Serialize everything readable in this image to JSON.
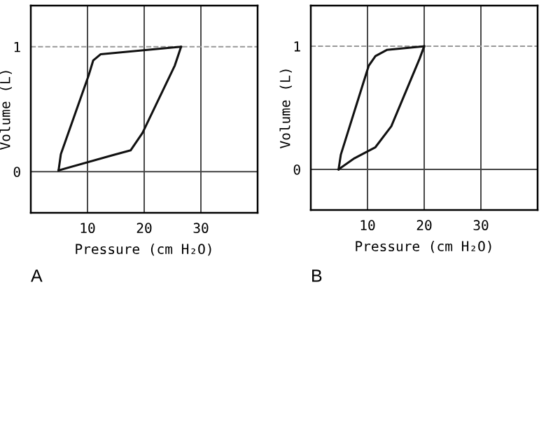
{
  "chart_data": [
    {
      "type": "line",
      "xlabel": "Pressure (cm H₂O)",
      "ylabel": "Volume (L)",
      "annotations": [
        "A"
      ],
      "xlim": [
        0,
        40
      ],
      "ylim": [
        -0.33,
        1.33
      ],
      "xticks": [
        10,
        20,
        30
      ],
      "yticks": [
        0,
        1
      ],
      "grid": "x",
      "marker": "none",
      "line_style": "solid",
      "ref_lines": [
        {
          "axis": "y",
          "value": 0,
          "line_style": "solid"
        },
        {
          "axis": "y",
          "value": 1,
          "line_style": "dashed"
        }
      ],
      "series": [
        {
          "color": "#111111",
          "x": [
            4.9,
            5.3,
            10.2,
            11,
            12.3,
            26.5
          ],
          "values": [
            0.01,
            0.14,
            0.77,
            0.89,
            0.94,
            1.0
          ]
        },
        {
          "color": "#111111",
          "x": [
            4.9,
            14.3,
            17.6,
            19.7,
            25.4,
            26.5
          ],
          "values": [
            0.01,
            0.13,
            0.17,
            0.31,
            0.85,
            1.0
          ]
        }
      ]
    },
    {
      "type": "line",
      "xlabel": "Pressure (cm H₂O)",
      "ylabel": "Volume (L)",
      "annotations": [
        "B"
      ],
      "xlim": [
        0,
        40
      ],
      "ylim": [
        -0.33,
        1.33
      ],
      "xticks": [
        10,
        20,
        30
      ],
      "yticks": [
        0,
        1
      ],
      "grid": "x",
      "marker": "none",
      "line_style": "solid",
      "ref_lines": [
        {
          "axis": "y",
          "value": 0,
          "line_style": "solid"
        },
        {
          "axis": "y",
          "value": 1,
          "line_style": "dashed"
        }
      ],
      "series": [
        {
          "color": "#111111",
          "x": [
            4.9,
            5.3,
            10.2,
            11.4,
            13.4,
            20
          ],
          "values": [
            0,
            0.12,
            0.84,
            0.92,
            0.97,
            1.0
          ]
        },
        {
          "color": "#111111",
          "x": [
            4.9,
            7.7,
            11.4,
            14.2,
            19.2,
            20
          ],
          "values": [
            0,
            0.09,
            0.18,
            0.35,
            0.9,
            1.0
          ]
        }
      ]
    }
  ]
}
